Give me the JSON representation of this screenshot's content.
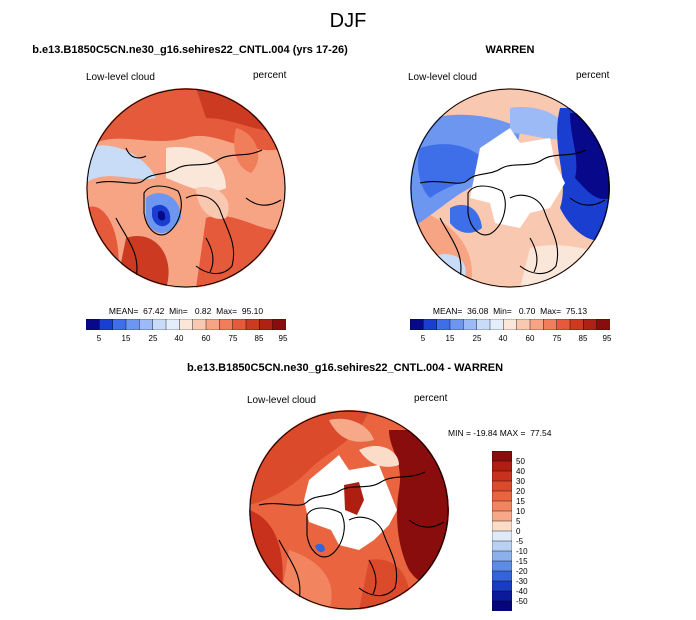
{
  "page": {
    "title": "DJF"
  },
  "panels": [
    {
      "title": "b.e13.B1850C5CN.ne30_g16.sehires22_CNTL.004 (yrs 17-26)",
      "left_label": "Low-level cloud",
      "right_label": "percent",
      "stats": "MEAN=  67.42  Min=   0.82  Max=  95.10",
      "colorbar_ticks": [
        "5",
        "15",
        "25",
        "40",
        "60",
        "75",
        "85",
        "95"
      ],
      "colorbar_colors": [
        "#08088a",
        "#1a3fd0",
        "#3f6fe8",
        "#6d96f0",
        "#9cbaf5",
        "#c8dcf8",
        "#e4eefa",
        "#fbe6da",
        "#f9c8b0",
        "#f6a483",
        "#f17e5a",
        "#e45a3a",
        "#cc3a22",
        "#ae2216",
        "#8a0d0d"
      ]
    },
    {
      "title": "WARREN",
      "left_label": "Low-level cloud",
      "right_label": "percent",
      "stats": "MEAN=  36.08  Min=   0.70  Max=  75.13",
      "colorbar_ticks": [
        "5",
        "15",
        "25",
        "40",
        "60",
        "75",
        "85",
        "95"
      ],
      "colorbar_colors": [
        "#08088a",
        "#1a3fd0",
        "#3f6fe8",
        "#6d96f0",
        "#9cbaf5",
        "#c8dcf8",
        "#e4eefa",
        "#fbe6da",
        "#f9c8b0",
        "#f6a483",
        "#f17e5a",
        "#e45a3a",
        "#cc3a22",
        "#ae2216",
        "#8a0d0d"
      ]
    },
    {
      "title": "b.e13.B1850C5CN.ne30_g16.sehires22_CNTL.004 - WARREN",
      "left_label": "Low-level cloud",
      "right_label": "percent",
      "stats": "MIN = -19.84 MAX =  77.54",
      "colorbar_ticks": [
        "50",
        "40",
        "30",
        "20",
        "15",
        "10",
        "5",
        "0",
        "-5",
        "-10",
        "-15",
        "-20",
        "-30",
        "-40",
        "-50"
      ],
      "colorbar_colors": [
        "#8a0d0d",
        "#ae1f12",
        "#c8321c",
        "#dc4a2c",
        "#ea6440",
        "#f28560",
        "#f6a888",
        "#fbdcc8",
        "#dfeaf8",
        "#b9d0f2",
        "#8cb0ec",
        "#5e8ce4",
        "#3564d8",
        "#1a3cc2",
        "#0a1a9a",
        "#06067a"
      ]
    }
  ],
  "colors": {
    "deep_blue": "#08088a",
    "mid_blue": "#3f6fe8",
    "light_blue": "#9cbaf5",
    "pale": "#fbe6da",
    "orange": "#f17e5a",
    "red": "#cc3a22",
    "dark_red": "#8a0d0d"
  }
}
